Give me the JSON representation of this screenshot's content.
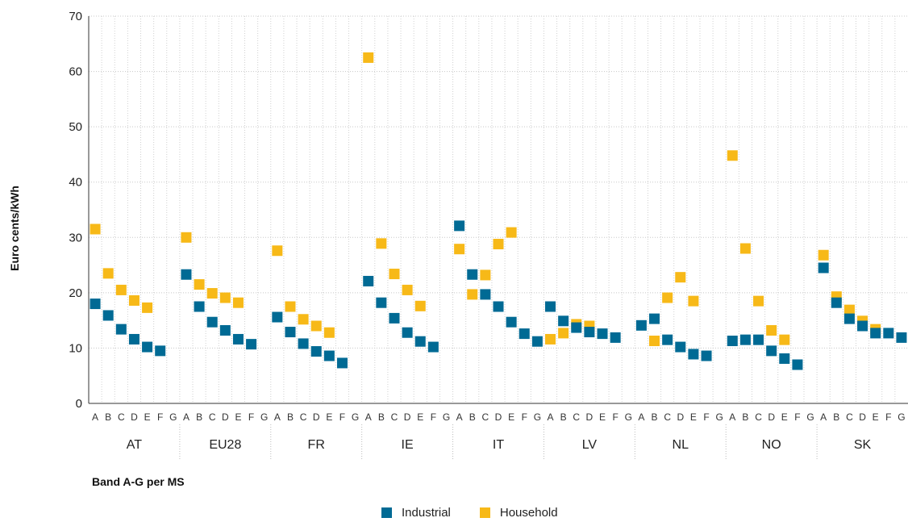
{
  "chart_data": {
    "type": "scatter",
    "ylabel": "Euro cents/kWh",
    "xlabel": "Band A-G per MS",
    "ylim": [
      0,
      70
    ],
    "yticks": [
      0,
      10,
      20,
      30,
      40,
      50,
      60,
      70
    ],
    "grid": "dotted",
    "legend_position": "bottom-center",
    "bands": [
      "A",
      "B",
      "C",
      "D",
      "E",
      "F",
      "G"
    ],
    "groups": [
      "AT",
      "EU28",
      "FR",
      "IE",
      "IT",
      "LV",
      "NL",
      "NO",
      "SK"
    ],
    "series": [
      {
        "name": "Industrial",
        "color": "#006a94",
        "values": [
          [
            18.0,
            15.9,
            13.4,
            11.6,
            10.2,
            9.5,
            null
          ],
          [
            23.3,
            17.5,
            14.7,
            13.2,
            11.6,
            10.7,
            null
          ],
          [
            15.6,
            12.9,
            10.8,
            9.4,
            8.6,
            7.3,
            null
          ],
          [
            22.1,
            18.2,
            15.4,
            12.8,
            11.2,
            10.2,
            null
          ],
          [
            32.1,
            23.3,
            19.7,
            17.5,
            14.7,
            12.6,
            11.2
          ],
          [
            17.5,
            14.9,
            13.7,
            12.9,
            12.6,
            11.9,
            null
          ],
          [
            14.1,
            15.3,
            11.5,
            10.2,
            8.9,
            8.6,
            null
          ],
          [
            11.3,
            11.5,
            11.5,
            9.5,
            8.1,
            7.0,
            null
          ],
          [
            24.5,
            18.2,
            15.3,
            14.0,
            12.7,
            12.7,
            11.9
          ]
        ]
      },
      {
        "name": "Household",
        "color": "#f7b918",
        "values": [
          [
            31.5,
            23.5,
            20.5,
            18.6,
            17.3,
            null,
            null
          ],
          [
            30.0,
            21.5,
            19.9,
            19.1,
            18.2,
            null,
            null
          ],
          [
            27.6,
            17.5,
            15.2,
            14.0,
            12.8,
            null,
            null
          ],
          [
            62.5,
            28.9,
            23.4,
            20.5,
            17.6,
            null,
            null
          ],
          [
            27.9,
            19.7,
            23.2,
            28.8,
            30.9,
            null,
            null
          ],
          [
            11.6,
            12.7,
            14.3,
            14.0,
            null,
            null,
            null
          ],
          [
            null,
            11.3,
            19.1,
            22.8,
            18.5,
            null,
            null
          ],
          [
            44.8,
            28.0,
            18.5,
            13.2,
            11.5,
            null,
            null
          ],
          [
            26.8,
            19.3,
            16.9,
            14.9,
            13.4,
            null,
            null
          ]
        ]
      }
    ]
  }
}
